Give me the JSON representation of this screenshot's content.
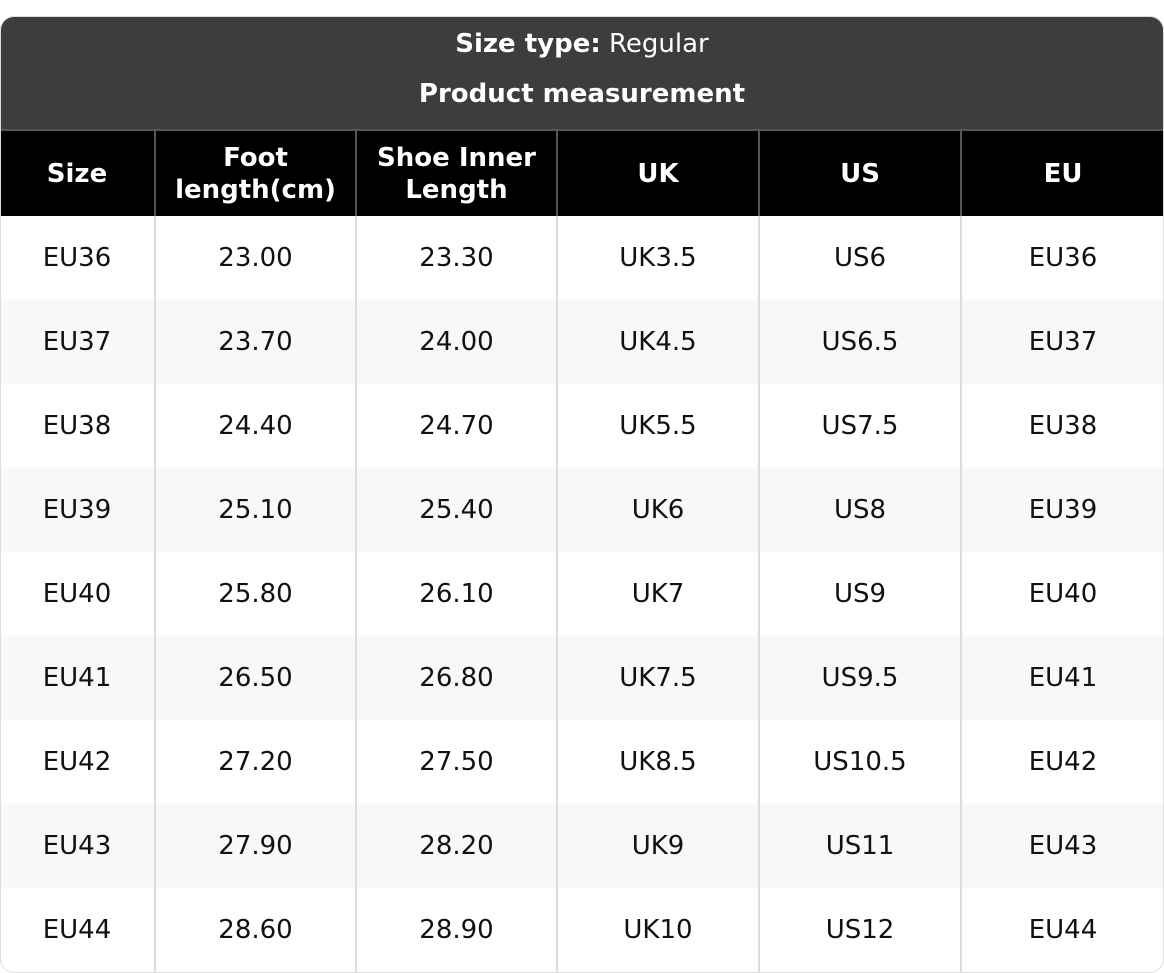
{
  "header": {
    "size_type_label": "Size type:",
    "size_type_value": "Regular",
    "subtitle": "Product measurement"
  },
  "columns": [
    "Size",
    "Foot length(cm)",
    "Shoe Inner Length",
    "UK",
    "US",
    "EU"
  ],
  "rows": [
    [
      "EU36",
      "23.00",
      "23.30",
      "UK3.5",
      "US6",
      "EU36"
    ],
    [
      "EU37",
      "23.70",
      "24.00",
      "UK4.5",
      "US6.5",
      "EU37"
    ],
    [
      "EU38",
      "24.40",
      "24.70",
      "UK5.5",
      "US7.5",
      "EU38"
    ],
    [
      "EU39",
      "25.10",
      "25.40",
      "UK6",
      "US8",
      "EU39"
    ],
    [
      "EU40",
      "25.80",
      "26.10",
      "UK7",
      "US9",
      "EU40"
    ],
    [
      "EU41",
      "26.50",
      "26.80",
      "UK7.5",
      "US9.5",
      "EU41"
    ],
    [
      "EU42",
      "27.20",
      "27.50",
      "UK8.5",
      "US10.5",
      "EU42"
    ],
    [
      "EU43",
      "27.90",
      "28.20",
      "UK9",
      "US11",
      "EU43"
    ],
    [
      "EU44",
      "28.60",
      "28.90",
      "UK10",
      "US12",
      "EU44"
    ]
  ],
  "colors": {
    "header_bg": "#3d3d3d",
    "column_header_bg": "#000000",
    "alt_row_bg": "#f8f8f8"
  }
}
